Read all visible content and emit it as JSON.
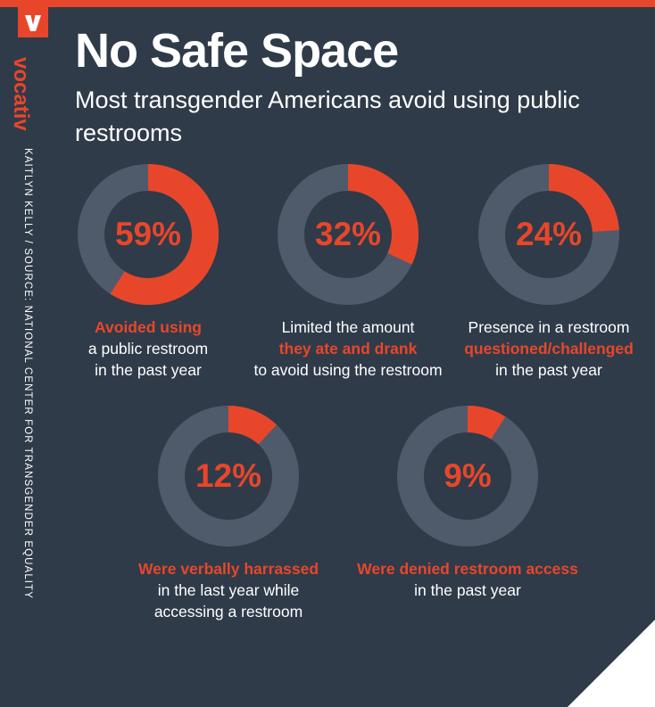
{
  "brand": "vocativ",
  "credit": "KAITLYN KELLY / SOURCE: NATIONAL CENTER FOR TRANSGENDER EQUALITY",
  "title": "No Safe Space",
  "subtitle": "Most transgender Americans avoid using public restrooms",
  "colors": {
    "accent": "#e8462a",
    "ring": "#4f5b6a",
    "background": "#2f3b49"
  },
  "chart_data": [
    {
      "type": "pie",
      "value": 59,
      "label": "59%",
      "caption": [
        {
          "text": "Avoided using",
          "highlight": true
        },
        {
          "text": "a public restroom",
          "highlight": false
        },
        {
          "text": "in the past year",
          "highlight": false
        }
      ]
    },
    {
      "type": "pie",
      "value": 32,
      "label": "32%",
      "caption": [
        {
          "text": "Limited the amount",
          "highlight": false
        },
        {
          "text": "they ate and drank",
          "highlight": true
        },
        {
          "text": "to avoid using the restroom",
          "highlight": false
        }
      ]
    },
    {
      "type": "pie",
      "value": 24,
      "label": "24%",
      "caption": [
        {
          "text": "Presence in a restroom",
          "highlight": false
        },
        {
          "text": "questioned/challenged",
          "highlight": true
        },
        {
          "text": "in the past year",
          "highlight": false
        }
      ]
    },
    {
      "type": "pie",
      "value": 12,
      "label": "12%",
      "caption": [
        {
          "text": "Were verbally harrassed",
          "highlight": true
        },
        {
          "text": "in the last year while",
          "highlight": false
        },
        {
          "text": "accessing a restroom",
          "highlight": false
        }
      ]
    },
    {
      "type": "pie",
      "value": 9,
      "label": "9%",
      "caption": [
        {
          "text": "Were denied restroom access",
          "highlight": true
        },
        {
          "text": "in the past year",
          "highlight": false
        }
      ]
    }
  ]
}
